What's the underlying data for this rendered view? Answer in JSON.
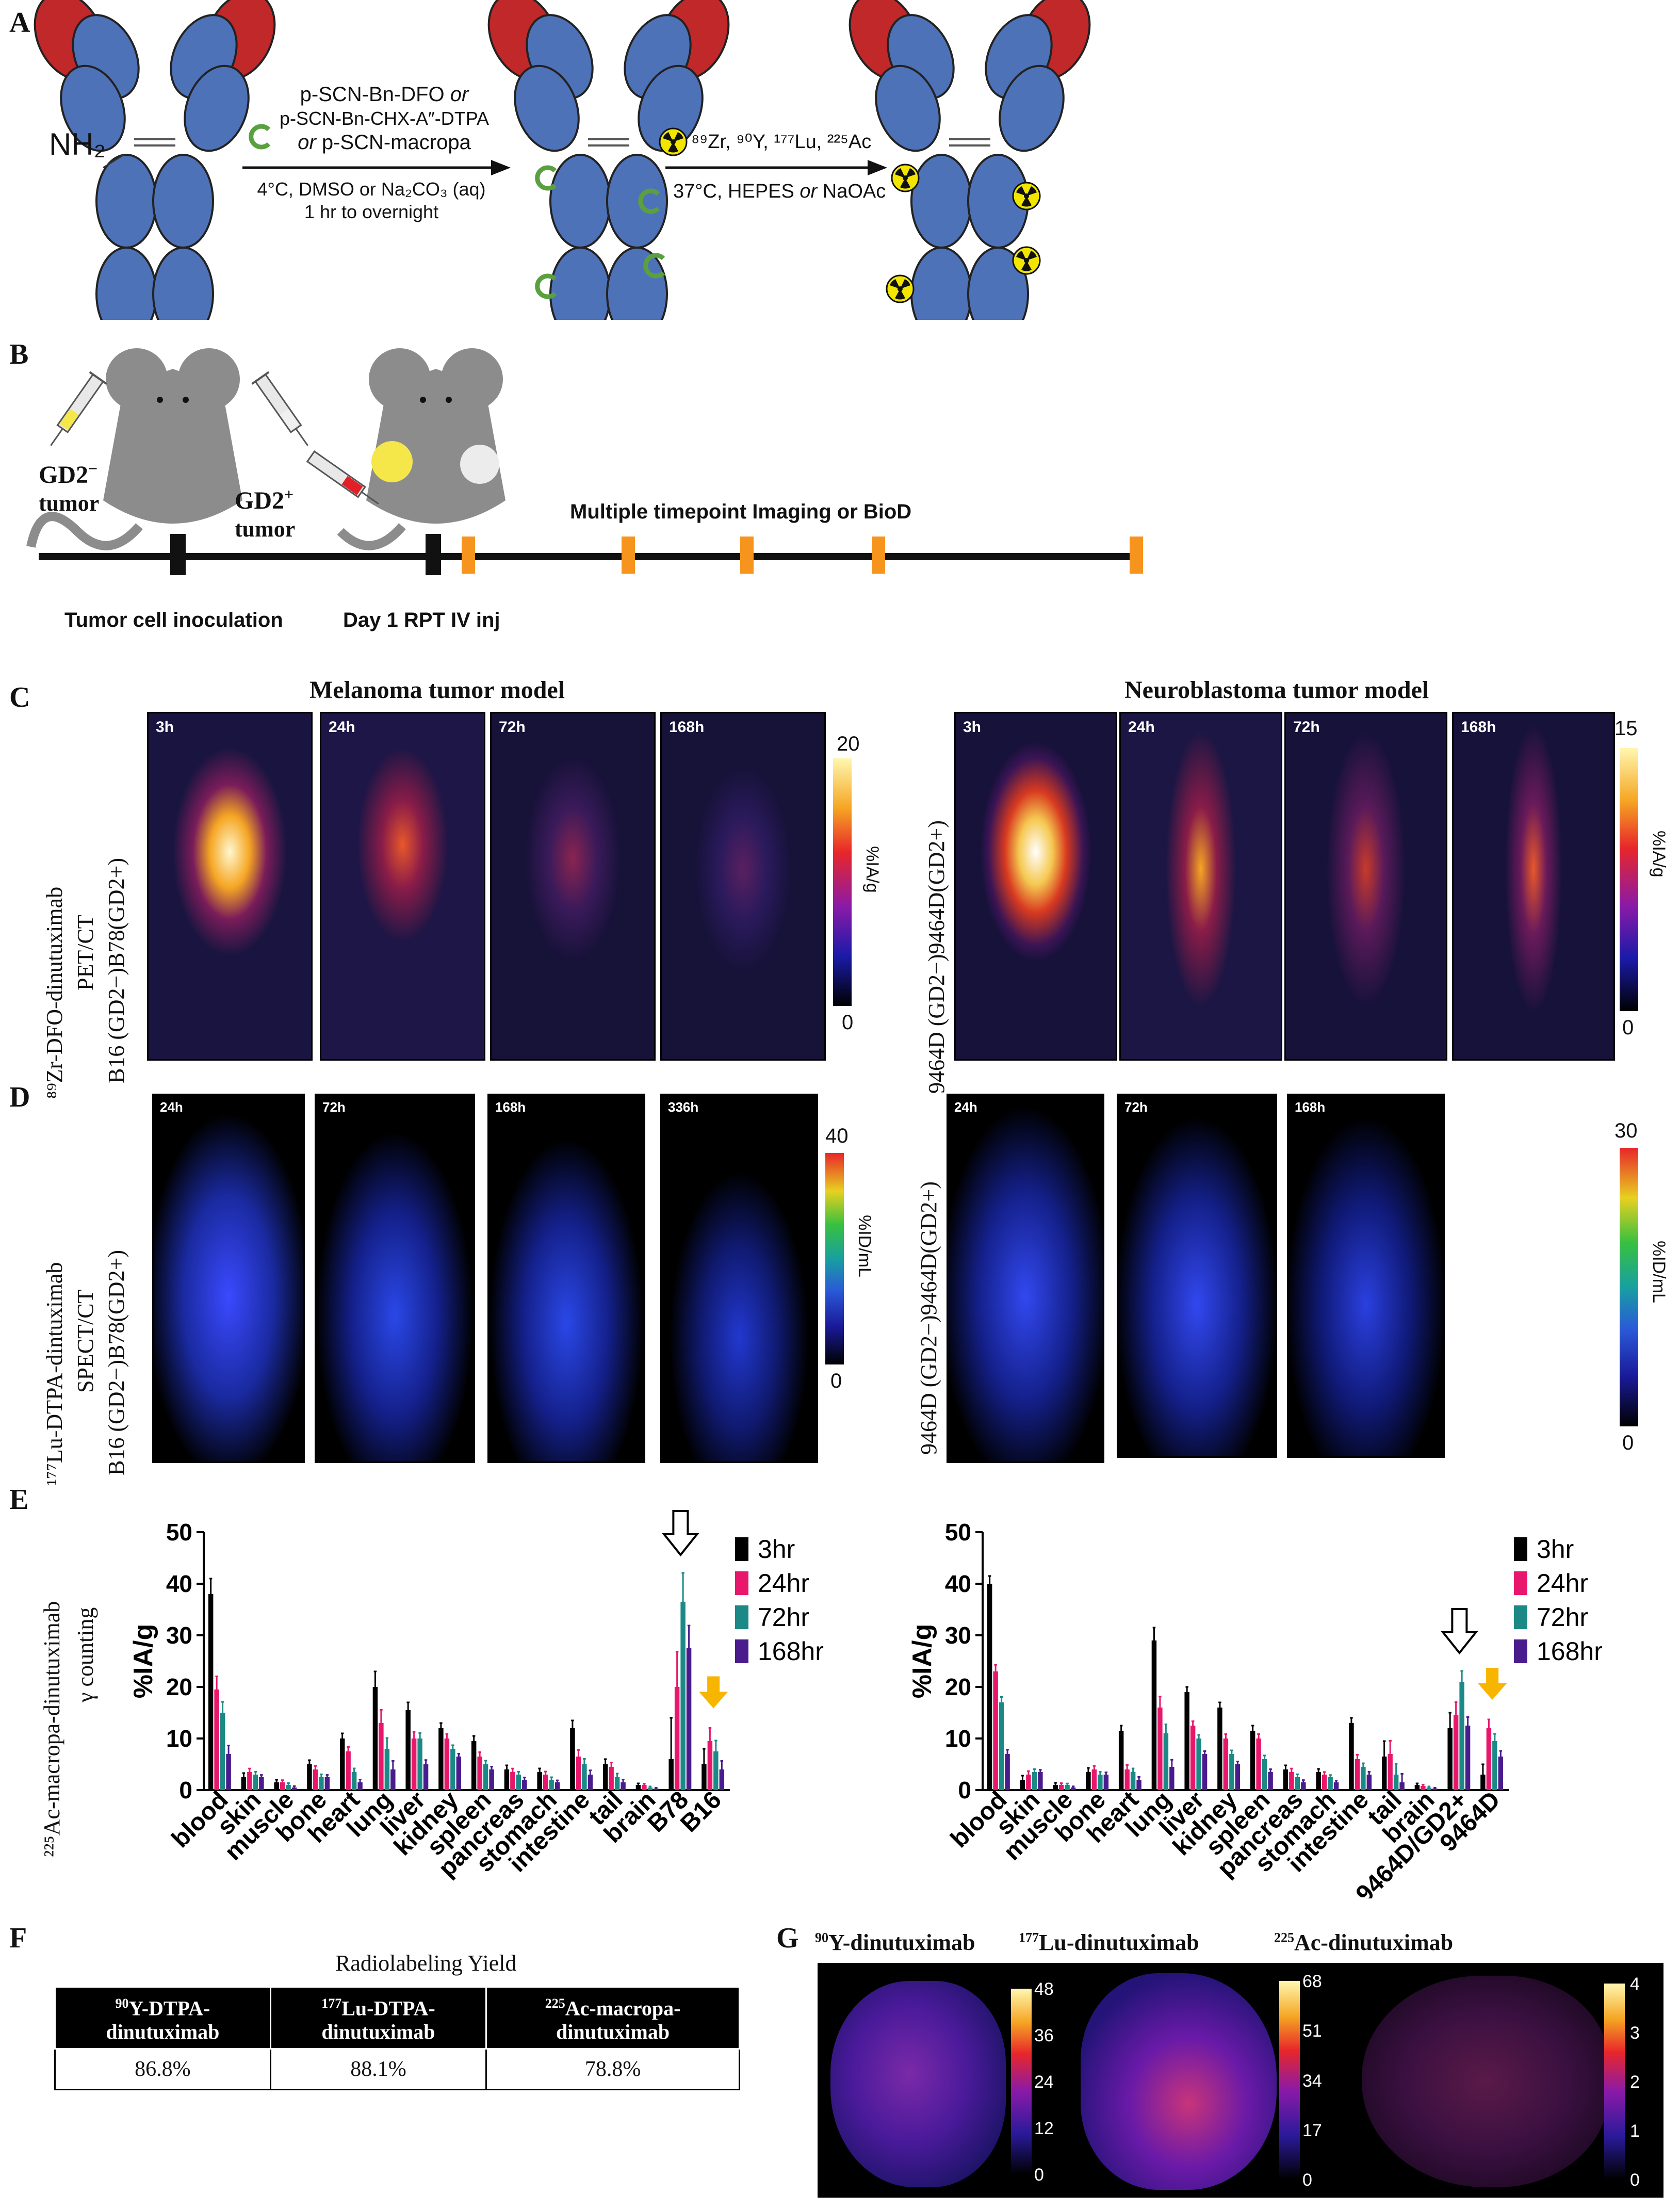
{
  "panels": {
    "A": {
      "label": "A",
      "nh2": "NH₂",
      "step1": {
        "line1": "p-SCN-Bn-DFO ",
        "line1_or": "or",
        "line2": "p-SCN-Bn-CHX-A″-DTPA",
        "line3_or": "or",
        "line3": " p-SCN-macropa",
        "cond1": "4°C, DMSO or Na₂CO₃ (aq)",
        "cond2": "1 hr to overnight"
      },
      "step2": {
        "isotopes": "⁸⁹Zr, ⁹⁰Y, ¹⁷⁷Lu, ²²⁵Ac",
        "cond_a": "37°C, HEPES ",
        "cond_or": "or",
        "cond_b": " NaOAc"
      },
      "colors": {
        "heavy": "#c0282a",
        "light": "#4e72b8",
        "chelator": "#5aa040",
        "radio": "#f2e600"
      }
    },
    "B": {
      "label": "B",
      "gd2neg": "GD2",
      "gd2neg_sup": "−",
      "gd2neg_tumor": "tumor",
      "gd2pos": "GD2",
      "gd2pos_sup": "+",
      "gd2pos_tumor": "tumor",
      "timeline_title": "Multiple timepoint Imaging or BioD",
      "step1": "Tumor cell inoculation",
      "step2": "Day 1 RPT IV inj",
      "marker_color": "#f7941d"
    },
    "C": {
      "label": "C",
      "left_title": "Melanoma tumor model",
      "right_title": "Neuroblastoma tumor model",
      "ylabel1": "⁸⁹Zr-DFO-dinutuximab",
      "ylabel2": "PET/CT",
      "ylabel3": "B16 (GD2−)B78(GD2+)",
      "ylabel_right": "9464D (GD2−)9464D(GD2+)",
      "left_times": [
        "3h",
        "24h",
        "72h",
        "168h"
      ],
      "right_times": [
        "3h",
        "24h",
        "72h",
        "168h"
      ],
      "left_cbar": {
        "max": "20",
        "min": "0",
        "unit": "%IA/g"
      },
      "right_cbar": {
        "max": "15",
        "min": "0",
        "unit": "%IA/g"
      }
    },
    "D": {
      "label": "D",
      "ylabel1": "¹⁷⁷Lu-DTPA-dintuximab",
      "ylabel2": "SPECT/CT",
      "ylabel3": "B16 (GD2−)B78(GD2+)",
      "ylabel_right": "9464D (GD2−)9464D(GD2+)",
      "left_times": [
        "24h",
        "72h",
        "168h",
        "336h"
      ],
      "right_times": [
        "24h",
        "72h",
        "168h"
      ],
      "left_cbar": {
        "max": "40",
        "min": "0",
        "unit": "%ID/mL"
      },
      "right_cbar": {
        "max": "30",
        "min": "0",
        "unit": "%ID/mL"
      }
    },
    "E": {
      "label": "E",
      "ylabel1": "²²⁵Ac-macropa-dinutuximab",
      "ylabel2": "γ counting"
    },
    "F": {
      "label": "F",
      "title": "Radiolabeling Yield",
      "headers": [
        {
          "sup": "90",
          "line1": "Y-DTPA-",
          "line2": "dinutuximab"
        },
        {
          "sup": "177",
          "line1": "Lu-DTPA-",
          "line2": "dinutuximab"
        },
        {
          "sup": "225",
          "line1": "Ac-macropa-",
          "line2": "dinutuximab"
        }
      ],
      "values": [
        "86.8%",
        "88.1%",
        "78.8%"
      ]
    },
    "G": {
      "label": "G",
      "titles": [
        {
          "sup": "90",
          "text": "Y-dinutuximab"
        },
        {
          "sup": "177",
          "text": "Lu-dinutuximab"
        },
        {
          "sup": "225",
          "text": "Ac-dinutuximab"
        }
      ],
      "cbar1": [
        "48",
        "36",
        "24",
        "12",
        "0"
      ],
      "cbar2": [
        "68",
        "51",
        "34",
        "17",
        "0"
      ],
      "cbar3": [
        "4",
        "3",
        "2",
        "1",
        "0"
      ]
    }
  },
  "chart_data": [
    {
      "type": "bar",
      "title": "",
      "ylabel": "%IA/g",
      "ylim": [
        0,
        50
      ],
      "yticks": [
        "0",
        "10",
        "20",
        "30",
        "40",
        "50"
      ],
      "categories": [
        "blood",
        "skin",
        "muscle",
        "bone",
        "heart",
        "lung",
        "liver",
        "kidney",
        "spleen",
        "pancreas",
        "stomach",
        "intestine",
        "tail",
        "brain",
        "B78",
        "B16"
      ],
      "series": [
        {
          "name": "3hr",
          "color": "#000000",
          "values": [
            38,
            2.5,
            1.5,
            5,
            10,
            20,
            15.5,
            12,
            9.5,
            4,
            3.5,
            12,
            5,
            1,
            6,
            5
          ]
        },
        {
          "name": "24hr",
          "color": "#e8176b",
          "values": [
            19.5,
            3.5,
            1.5,
            4,
            7.5,
            13,
            10,
            10,
            6.5,
            3.5,
            3,
            6.5,
            4.5,
            1,
            20,
            9.5
          ]
        },
        {
          "name": "72hr",
          "color": "#1b8a86",
          "values": [
            15,
            3,
            1,
            2.5,
            3.5,
            8,
            10,
            8,
            5,
            3,
            2,
            5,
            2.5,
            0.5,
            36.5,
            7.5
          ]
        },
        {
          "name": "168hr",
          "color": "#4a1b8c",
          "values": [
            7,
            2.5,
            0.5,
            2.5,
            1.5,
            4,
            5,
            6.5,
            4,
            2,
            1.5,
            3,
            1.5,
            0.3,
            27.5,
            4
          ]
        }
      ],
      "errors": [
        3,
        0.8,
        0.5,
        0.8,
        1,
        3,
        1.5,
        1,
        1,
        0.8,
        0.7,
        1.5,
        1,
        0.3,
        8,
        3
      ],
      "legend_placement": "top-right",
      "annotations": [
        "open arrow over B78",
        "orange arrow over B16"
      ]
    },
    {
      "type": "bar",
      "title": "",
      "ylabel": "%IA/g",
      "ylim": [
        0,
        50
      ],
      "yticks": [
        "0",
        "10",
        "20",
        "30",
        "40",
        "50"
      ],
      "categories": [
        "blood",
        "skin",
        "muscle",
        "bone",
        "heart",
        "lung",
        "liver",
        "kidney",
        "spleen",
        "pancreas",
        "stomach",
        "intestine",
        "tail",
        "brain",
        "9464D/GD2+",
        "9464D"
      ],
      "series": [
        {
          "name": "3hr",
          "color": "#000000",
          "values": [
            40,
            2,
            1,
            3.5,
            11.5,
            29,
            19,
            16,
            11.5,
            4,
            3.5,
            13,
            6.5,
            1,
            12,
            3
          ]
        },
        {
          "name": "24hr",
          "color": "#e8176b",
          "values": [
            23,
            3,
            1,
            4,
            4,
            16,
            12.5,
            10,
            10,
            3.5,
            3,
            6,
            7,
            0.8,
            14.5,
            12
          ]
        },
        {
          "name": "72hr",
          "color": "#1b8a86",
          "values": [
            17,
            3.5,
            1,
            3,
            3.5,
            11,
            10,
            7,
            6,
            2.5,
            2.5,
            4.5,
            3,
            0.5,
            21,
            9.5
          ]
        },
        {
          "name": "168hr",
          "color": "#4a1b8c",
          "values": [
            7,
            3.5,
            0.5,
            3,
            2,
            4.5,
            7,
            5,
            3.5,
            1.5,
            1.5,
            3,
            1.5,
            0.3,
            12.5,
            6.5
          ]
        }
      ],
      "errors": [
        1.5,
        0.8,
        0.4,
        0.8,
        1,
        2.5,
        1,
        1,
        1,
        0.8,
        0.6,
        1,
        3,
        0.3,
        3,
        2
      ],
      "legend_placement": "top-right",
      "annotations": [
        "open arrow over 9464D/GD2+",
        "orange arrow over 9464D"
      ]
    }
  ]
}
